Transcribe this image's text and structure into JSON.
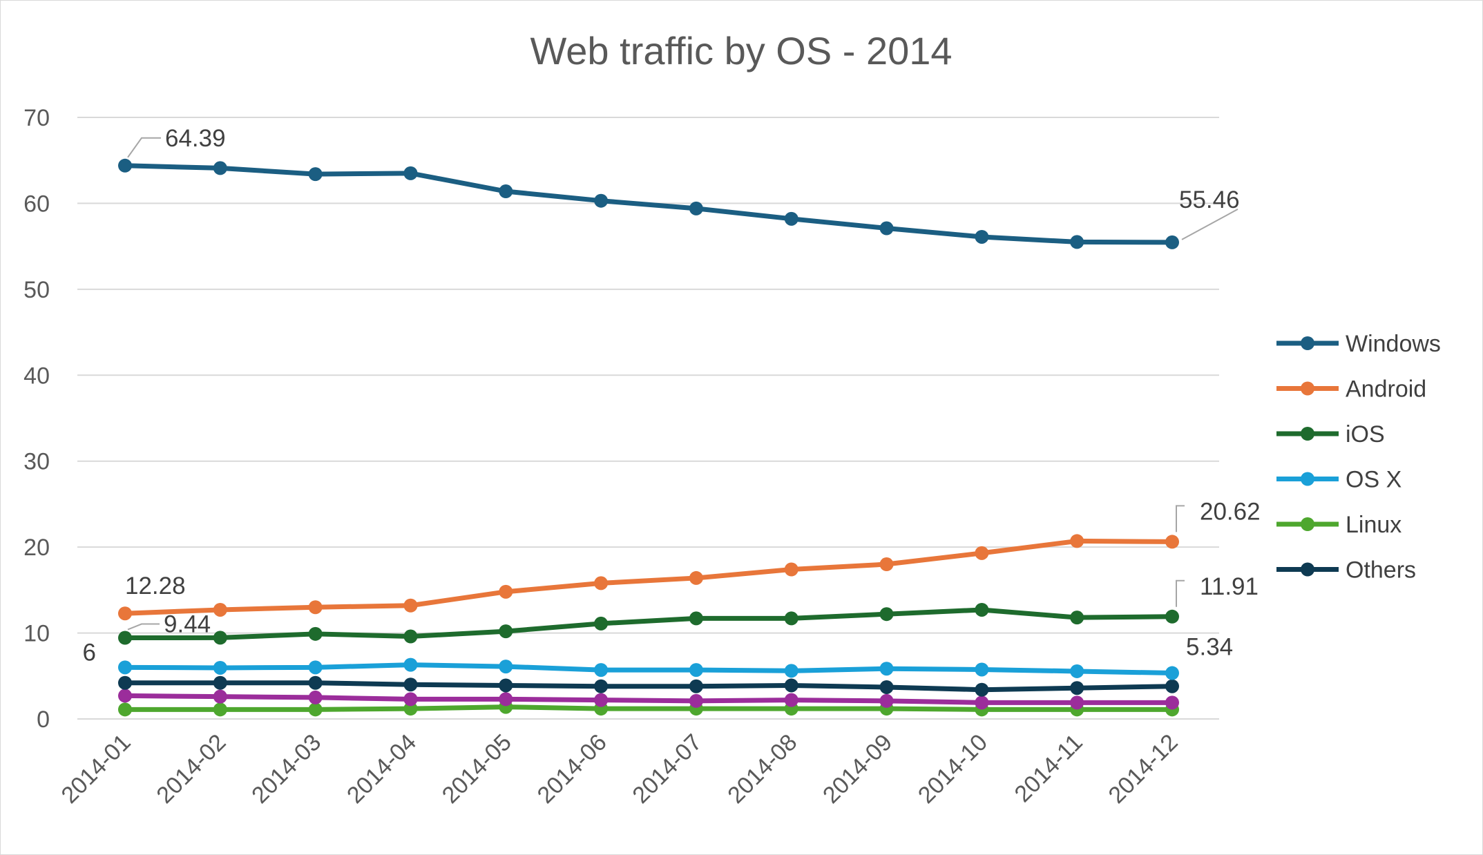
{
  "chart_data": {
    "type": "line",
    "title": "Web traffic by OS - 2014",
    "xlabel": "",
    "ylabel": "",
    "ylim": [
      0,
      70
    ],
    "yticks": [
      0,
      10,
      20,
      30,
      40,
      50,
      60,
      70
    ],
    "grid": true,
    "legend_position": "right",
    "categories": [
      "2014-01",
      "2014-02",
      "2014-03",
      "2014-04",
      "2014-05",
      "2014-06",
      "2014-07",
      "2014-08",
      "2014-09",
      "2014-10",
      "2014-11",
      "2014-12"
    ],
    "series": [
      {
        "name": "Windows",
        "color": "#1b5e82",
        "values": [
          64.39,
          64.1,
          63.4,
          63.5,
          61.4,
          60.3,
          59.4,
          58.2,
          57.1,
          56.1,
          55.5,
          55.46
        ],
        "labels": [
          {
            "index": 0,
            "text": "64.39"
          },
          {
            "index": 11,
            "text": "55.46"
          }
        ]
      },
      {
        "name": "Android",
        "color": "#e8763a",
        "values": [
          12.28,
          12.7,
          13.0,
          13.2,
          14.8,
          15.8,
          16.4,
          17.4,
          18.0,
          19.3,
          20.7,
          20.62
        ],
        "labels": [
          {
            "index": 0,
            "text": "12.28"
          },
          {
            "index": 11,
            "text": "20.62"
          }
        ]
      },
      {
        "name": "iOS",
        "color": "#1e6b2d",
        "values": [
          9.44,
          9.45,
          9.9,
          9.6,
          10.2,
          11.1,
          11.7,
          11.7,
          12.2,
          12.7,
          11.8,
          11.91
        ],
        "labels": [
          {
            "index": 0,
            "text": "9.44"
          },
          {
            "index": 11,
            "text": "11.91"
          }
        ]
      },
      {
        "name": "OS X",
        "color": "#1aa0d8",
        "values": [
          6,
          5.95,
          6.0,
          6.3,
          6.1,
          5.7,
          5.7,
          5.6,
          5.85,
          5.75,
          5.55,
          5.34
        ],
        "labels": [
          {
            "index": 0,
            "text": "6"
          },
          {
            "index": 11,
            "text": "5.34"
          }
        ]
      },
      {
        "name": "Linux",
        "color": "#4ea72e",
        "values": [
          1.1,
          1.1,
          1.1,
          1.2,
          1.4,
          1.2,
          1.2,
          1.2,
          1.2,
          1.1,
          1.1,
          1.1
        ],
        "labels": []
      },
      {
        "name": "Others",
        "color": "#0e3a52",
        "values": [
          4.2,
          4.2,
          4.2,
          4.0,
          3.9,
          3.8,
          3.8,
          3.9,
          3.7,
          3.4,
          3.6,
          3.8
        ],
        "labels": []
      },
      {
        "name": "",
        "color": "#9b2d9b",
        "values": [
          2.7,
          2.6,
          2.5,
          2.3,
          2.3,
          2.2,
          2.1,
          2.2,
          2.1,
          1.9,
          1.9,
          1.9
        ],
        "labels": [],
        "in_legend": false
      }
    ]
  }
}
